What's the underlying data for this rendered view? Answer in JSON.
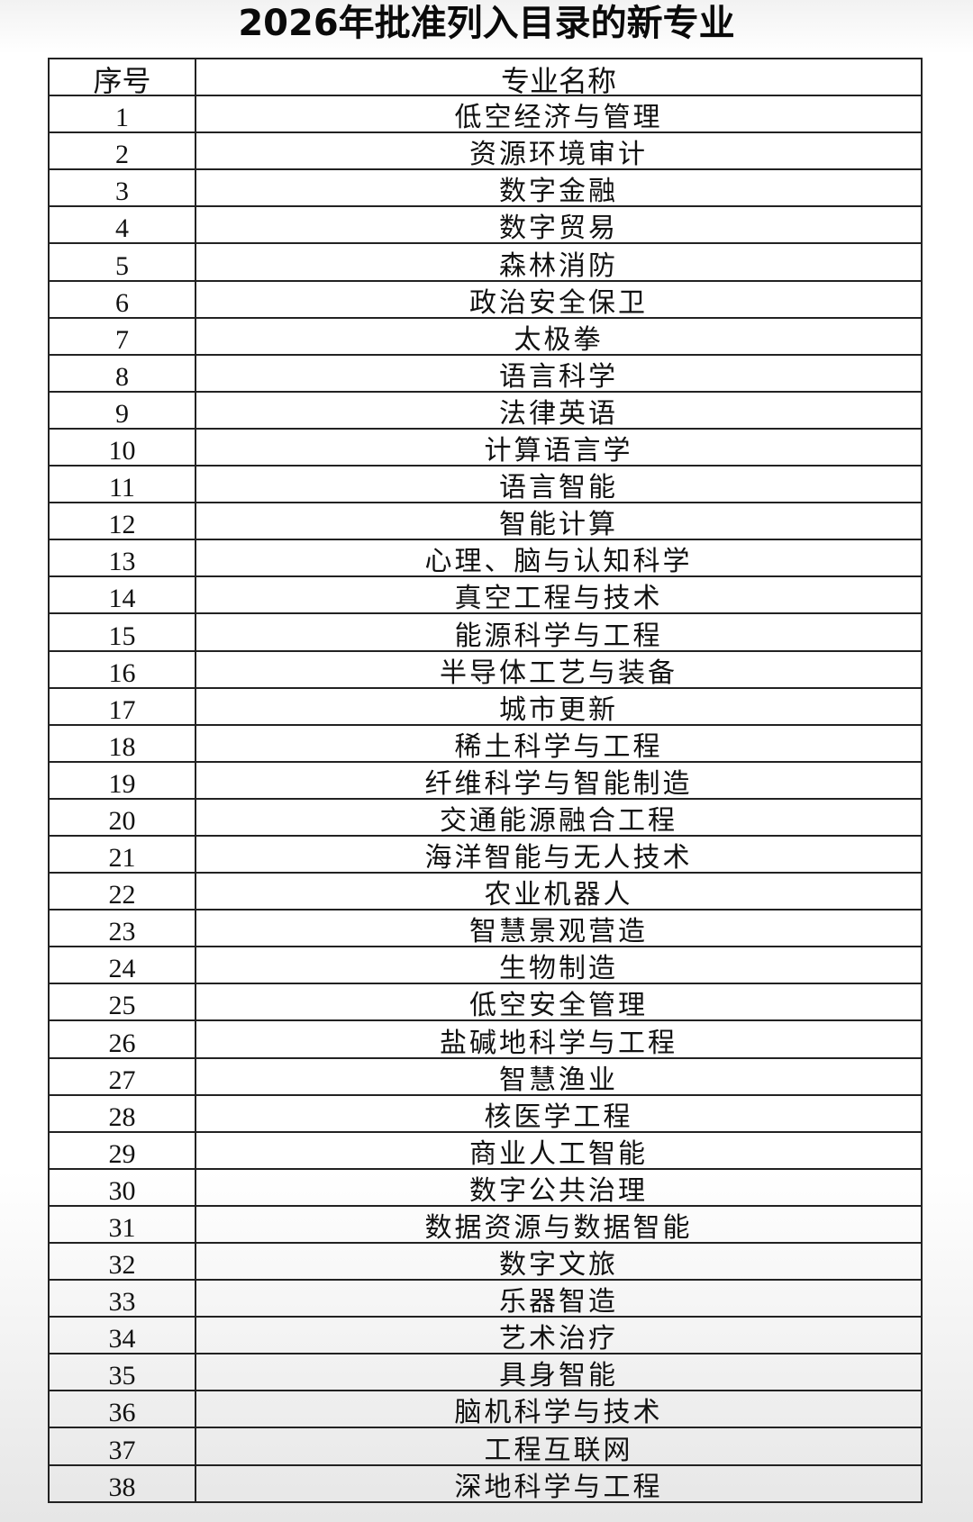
{
  "title": "2026年批准列入目录的新专业",
  "table": {
    "headers": [
      "序号",
      "专业名称"
    ],
    "rows": [
      [
        "1",
        "低空经济与管理"
      ],
      [
        "2",
        "资源环境审计"
      ],
      [
        "3",
        "数字金融"
      ],
      [
        "4",
        "数字贸易"
      ],
      [
        "5",
        "森林消防"
      ],
      [
        "6",
        "政治安全保卫"
      ],
      [
        "7",
        "太极拳"
      ],
      [
        "8",
        "语言科学"
      ],
      [
        "9",
        "法律英语"
      ],
      [
        "10",
        "计算语言学"
      ],
      [
        "11",
        "语言智能"
      ],
      [
        "12",
        "智能计算"
      ],
      [
        "13",
        "心理、脑与认知科学"
      ],
      [
        "14",
        "真空工程与技术"
      ],
      [
        "15",
        "能源科学与工程"
      ],
      [
        "16",
        "半导体工艺与装备"
      ],
      [
        "17",
        "城市更新"
      ],
      [
        "18",
        "稀土科学与工程"
      ],
      [
        "19",
        "纤维科学与智能制造"
      ],
      [
        "20",
        "交通能源融合工程"
      ],
      [
        "21",
        "海洋智能与无人技术"
      ],
      [
        "22",
        "农业机器人"
      ],
      [
        "23",
        "智慧景观营造"
      ],
      [
        "24",
        "生物制造"
      ],
      [
        "25",
        "低空安全管理"
      ],
      [
        "26",
        "盐碱地科学与工程"
      ],
      [
        "27",
        "智慧渔业"
      ],
      [
        "28",
        "核医学工程"
      ],
      [
        "29",
        "商业人工智能"
      ],
      [
        "30",
        "数字公共治理"
      ],
      [
        "31",
        "数据资源与数据智能"
      ],
      [
        "32",
        "数字文旅"
      ],
      [
        "33",
        "乐器智造"
      ],
      [
        "34",
        "艺术治疗"
      ],
      [
        "35",
        "具身智能"
      ],
      [
        "36",
        "脑机科学与技术"
      ],
      [
        "37",
        "工程互联网"
      ],
      [
        "38",
        "深地科学与工程"
      ]
    ]
  }
}
